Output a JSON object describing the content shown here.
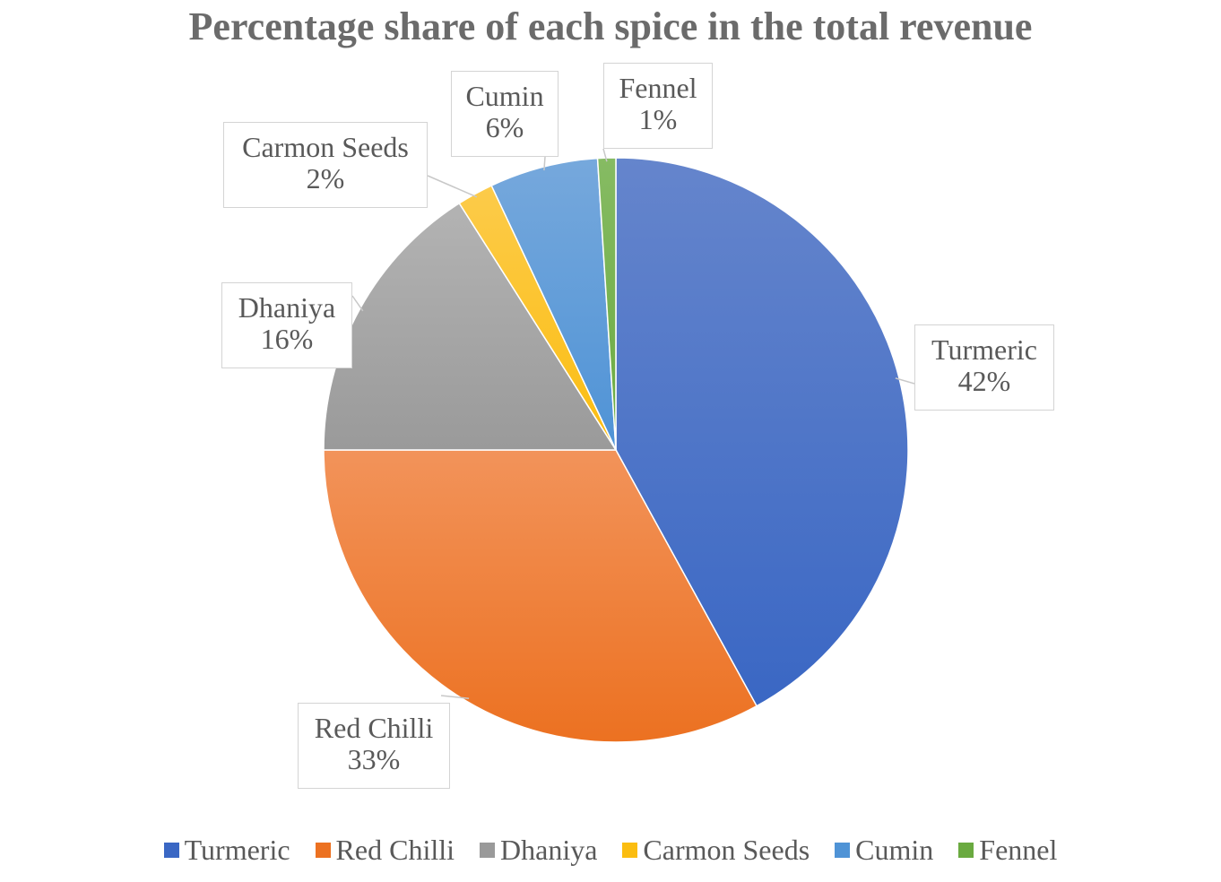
{
  "chart_data": {
    "type": "pie",
    "title": "Percentage share of each spice in the total revenue",
    "slices": [
      {
        "label": "Turmeric",
        "value": 42,
        "percent_label": "42%",
        "color": "#3a67c4",
        "color_light": "#6585cc"
      },
      {
        "label": "Red Chilli",
        "value": 33,
        "percent_label": "33%",
        "color": "#ec7121",
        "color_light": "#f2935a"
      },
      {
        "label": "Dhaniya",
        "value": 16,
        "percent_label": "16%",
        "color": "#9a9a9a",
        "color_light": "#b3b3b3"
      },
      {
        "label": "Carmon Seeds",
        "value": 2,
        "percent_label": "2%",
        "color": "#fbbd10",
        "color_light": "#fccb4a"
      },
      {
        "label": "Cumin",
        "value": 6,
        "percent_label": "6%",
        "color": "#4f93d6",
        "color_light": "#76a8dc"
      },
      {
        "label": "Fennel",
        "value": 1,
        "percent_label": "1%",
        "color": "#6aaa40",
        "color_light": "#86bb63"
      }
    ],
    "legend_position": "bottom"
  }
}
